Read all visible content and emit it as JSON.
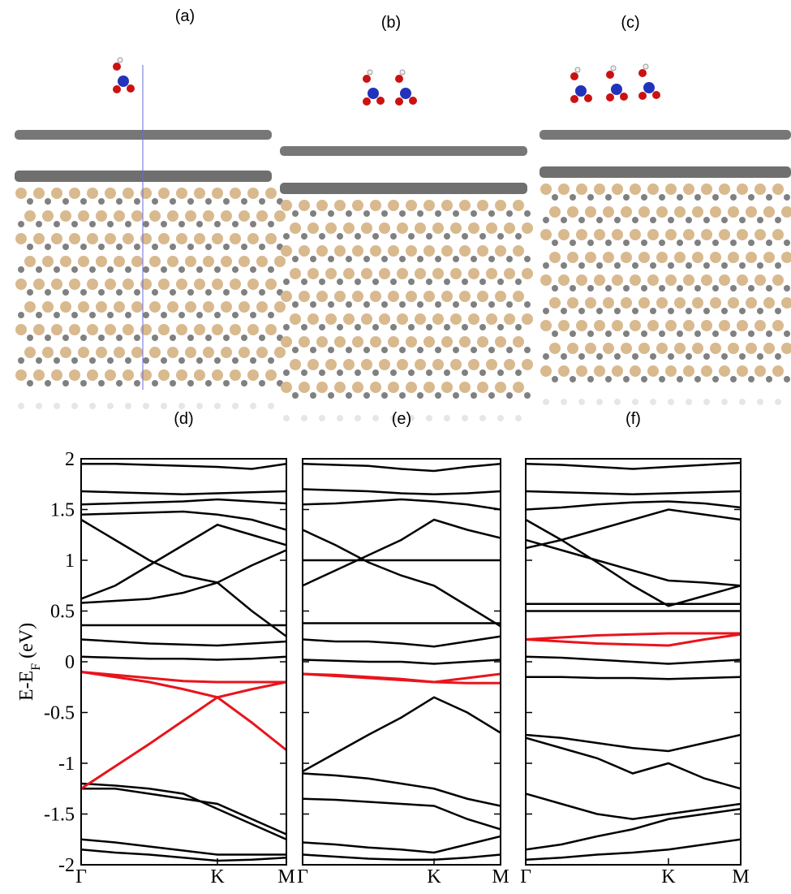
{
  "panel_labels": [
    "(a)",
    "(b)",
    "(c)"
  ],
  "ylabel": {
    "main": "E-E",
    "sub": "F",
    "unit": "(eV)"
  },
  "chart_data": [
    {
      "type": "line",
      "title": "(d)",
      "x": [
        0,
        0.166,
        0.332,
        0.498,
        0.664,
        0.832,
        1
      ],
      "xlim": [
        0,
        1
      ],
      "xticks": [
        {
          "value": 0,
          "label": "Γ"
        },
        {
          "value": 0.664,
          "label": "K"
        },
        {
          "value": 1,
          "label": "M"
        }
      ],
      "ylim": [
        -2,
        2
      ],
      "yticks": [
        2,
        1.5,
        1,
        0.5,
        0,
        -0.5,
        -1,
        -1.5,
        -2
      ],
      "series": [
        {
          "color": "#000000",
          "values": [
            1.95,
            1.95,
            1.94,
            1.93,
            1.92,
            1.9,
            1.95
          ]
        },
        {
          "color": "#000000",
          "values": [
            1.68,
            1.67,
            1.66,
            1.65,
            1.66,
            1.67,
            1.68
          ]
        },
        {
          "color": "#000000",
          "values": [
            1.55,
            1.56,
            1.57,
            1.58,
            1.6,
            1.58,
            1.56
          ]
        },
        {
          "color": "#000000",
          "values": [
            1.45,
            1.46,
            1.47,
            1.48,
            1.45,
            1.4,
            1.3
          ]
        },
        {
          "color": "#000000",
          "values": [
            0.62,
            0.75,
            0.95,
            1.15,
            1.35,
            1.25,
            1.15
          ]
        },
        {
          "color": "#000000",
          "values": [
            1.4,
            1.2,
            1.0,
            0.85,
            0.78,
            0.95,
            1.1
          ]
        },
        {
          "color": "#000000",
          "values": [
            0.58,
            0.6,
            0.62,
            0.68,
            0.78,
            0.5,
            0.25
          ]
        },
        {
          "color": "#000000",
          "values": [
            0.36,
            0.36,
            0.36,
            0.36,
            0.36,
            0.36,
            0.36
          ]
        },
        {
          "color": "#000000",
          "values": [
            0.22,
            0.2,
            0.18,
            0.17,
            0.16,
            0.18,
            0.2
          ]
        },
        {
          "color": "#000000",
          "values": [
            0.05,
            0.04,
            0.03,
            0.03,
            0.02,
            0.03,
            0.05
          ]
        },
        {
          "color": "#000000",
          "values": [
            -1.25,
            -1.25,
            -1.3,
            -1.35,
            -1.4,
            -1.55,
            -1.7
          ]
        },
        {
          "color": "#000000",
          "values": [
            -1.2,
            -1.22,
            -1.25,
            -1.3,
            -1.45,
            -1.6,
            -1.75
          ]
        },
        {
          "color": "#000000",
          "values": [
            -1.75,
            -1.78,
            -1.82,
            -1.86,
            -1.9,
            -1.9,
            -1.9
          ]
        },
        {
          "color": "#000000",
          "values": [
            -1.85,
            -1.88,
            -1.9,
            -1.93,
            -1.96,
            -1.95,
            -1.93
          ]
        },
        {
          "color": "#e8141c",
          "values": [
            -1.25,
            -1.03,
            -0.81,
            -0.58,
            -0.35,
            -0.27,
            -0.2
          ]
        },
        {
          "color": "#e8141c",
          "values": [
            -0.1,
            -0.15,
            -0.2,
            -0.27,
            -0.35,
            -0.6,
            -0.87
          ]
        },
        {
          "color": "#e8141c",
          "values": [
            -0.1,
            -0.13,
            -0.16,
            -0.19,
            -0.2,
            -0.2,
            -0.2
          ]
        }
      ]
    },
    {
      "type": "line",
      "title": "(e)",
      "x": [
        0,
        0.166,
        0.332,
        0.498,
        0.664,
        0.832,
        1
      ],
      "xlim": [
        0,
        1
      ],
      "xticks": [
        {
          "value": 0,
          "label": "Γ"
        },
        {
          "value": 0.664,
          "label": "K"
        },
        {
          "value": 1,
          "label": "M"
        }
      ],
      "ylim": [
        -2,
        2
      ],
      "yticks": [
        2,
        1.5,
        1,
        0.5,
        0,
        -0.5,
        -1,
        -1.5,
        -2
      ],
      "series": [
        {
          "color": "#000000",
          "values": [
            1.95,
            1.94,
            1.93,
            1.9,
            1.88,
            1.92,
            1.95
          ]
        },
        {
          "color": "#000000",
          "values": [
            1.7,
            1.69,
            1.68,
            1.66,
            1.65,
            1.66,
            1.68
          ]
        },
        {
          "color": "#000000",
          "values": [
            1.55,
            1.56,
            1.58,
            1.6,
            1.58,
            1.55,
            1.5
          ]
        },
        {
          "color": "#000000",
          "values": [
            1.0,
            1.0,
            1.0,
            1.0,
            1.0,
            1.0,
            1.0
          ]
        },
        {
          "color": "#000000",
          "values": [
            0.75,
            0.9,
            1.05,
            1.2,
            1.4,
            1.3,
            1.22
          ]
        },
        {
          "color": "#000000",
          "values": [
            1.3,
            1.15,
            0.98,
            0.85,
            0.75,
            0.55,
            0.35
          ]
        },
        {
          "color": "#000000",
          "values": [
            0.38,
            0.38,
            0.38,
            0.38,
            0.38,
            0.38,
            0.38
          ]
        },
        {
          "color": "#000000",
          "values": [
            0.22,
            0.2,
            0.2,
            0.18,
            0.15,
            0.2,
            0.25
          ]
        },
        {
          "color": "#000000",
          "values": [
            0.02,
            0.01,
            0.0,
            0.0,
            -0.02,
            0.0,
            0.02
          ]
        },
        {
          "color": "#000000",
          "values": [
            -1.08,
            -0.9,
            -0.72,
            -0.55,
            -0.35,
            -0.5,
            -0.7
          ]
        },
        {
          "color": "#000000",
          "values": [
            -1.1,
            -1.12,
            -1.15,
            -1.2,
            -1.25,
            -1.35,
            -1.42
          ]
        },
        {
          "color": "#000000",
          "values": [
            -1.35,
            -1.36,
            -1.38,
            -1.4,
            -1.42,
            -1.55,
            -1.65
          ]
        },
        {
          "color": "#000000",
          "values": [
            -1.78,
            -1.8,
            -1.83,
            -1.85,
            -1.88,
            -1.8,
            -1.72
          ]
        },
        {
          "color": "#000000",
          "values": [
            -1.9,
            -1.92,
            -1.94,
            -1.95,
            -1.95,
            -1.93,
            -1.9
          ]
        },
        {
          "color": "#e8141c",
          "values": [
            -0.12,
            -0.14,
            -0.16,
            -0.18,
            -0.2,
            -0.21,
            -0.21
          ]
        },
        {
          "color": "#e8141c",
          "values": [
            -0.12,
            -0.13,
            -0.15,
            -0.17,
            -0.2,
            -0.16,
            -0.12
          ]
        }
      ]
    },
    {
      "type": "line",
      "title": "(f)",
      "x": [
        0,
        0.166,
        0.332,
        0.498,
        0.664,
        0.832,
        1
      ],
      "xlim": [
        0,
        1
      ],
      "xticks": [
        {
          "value": 0,
          "label": "Γ"
        },
        {
          "value": 0.664,
          "label": "K"
        },
        {
          "value": 1,
          "label": "M"
        }
      ],
      "ylim": [
        -2,
        2
      ],
      "yticks": [
        2,
        1.5,
        1,
        0.5,
        0,
        -0.5,
        -1,
        -1.5,
        -2
      ],
      "series": [
        {
          "color": "#000000",
          "values": [
            1.95,
            1.94,
            1.92,
            1.9,
            1.92,
            1.94,
            1.96
          ]
        },
        {
          "color": "#000000",
          "values": [
            1.68,
            1.67,
            1.66,
            1.65,
            1.66,
            1.67,
            1.68
          ]
        },
        {
          "color": "#000000",
          "values": [
            1.5,
            1.52,
            1.55,
            1.57,
            1.58,
            1.56,
            1.52
          ]
        },
        {
          "color": "#000000",
          "values": [
            1.12,
            1.2,
            1.3,
            1.4,
            1.5,
            1.45,
            1.4
          ]
        },
        {
          "color": "#000000",
          "values": [
            1.2,
            1.1,
            1.0,
            0.9,
            0.8,
            0.78,
            0.75
          ]
        },
        {
          "color": "#000000",
          "values": [
            1.4,
            1.2,
            0.98,
            0.75,
            0.55,
            0.65,
            0.75
          ]
        },
        {
          "color": "#000000",
          "values": [
            0.57,
            0.57,
            0.57,
            0.57,
            0.57,
            0.57,
            0.57
          ]
        },
        {
          "color": "#000000",
          "values": [
            0.5,
            0.5,
            0.5,
            0.5,
            0.5,
            0.5,
            0.5
          ]
        },
        {
          "color": "#000000",
          "values": [
            0.05,
            0.04,
            0.02,
            0.0,
            -0.02,
            0.0,
            0.02
          ]
        },
        {
          "color": "#000000",
          "values": [
            -0.15,
            -0.15,
            -0.16,
            -0.16,
            -0.17,
            -0.16,
            -0.15
          ]
        },
        {
          "color": "#000000",
          "values": [
            -0.72,
            -0.75,
            -0.8,
            -0.85,
            -0.88,
            -0.8,
            -0.72
          ]
        },
        {
          "color": "#000000",
          "values": [
            -0.75,
            -0.85,
            -0.95,
            -1.1,
            -1.0,
            -1.15,
            -1.25
          ]
        },
        {
          "color": "#000000",
          "values": [
            -1.3,
            -1.4,
            -1.5,
            -1.55,
            -1.5,
            -1.45,
            -1.4
          ]
        },
        {
          "color": "#000000",
          "values": [
            -1.85,
            -1.8,
            -1.72,
            -1.65,
            -1.55,
            -1.5,
            -1.45
          ]
        },
        {
          "color": "#000000",
          "values": [
            -1.95,
            -1.93,
            -1.9,
            -1.88,
            -1.85,
            -1.8,
            -1.75
          ]
        },
        {
          "color": "#e8141c",
          "values": [
            0.22,
            0.2,
            0.18,
            0.17,
            0.16,
            0.22,
            0.27
          ]
        },
        {
          "color": "#e8141c",
          "values": [
            0.22,
            0.24,
            0.26,
            0.27,
            0.28,
            0.28,
            0.28
          ]
        }
      ]
    }
  ]
}
